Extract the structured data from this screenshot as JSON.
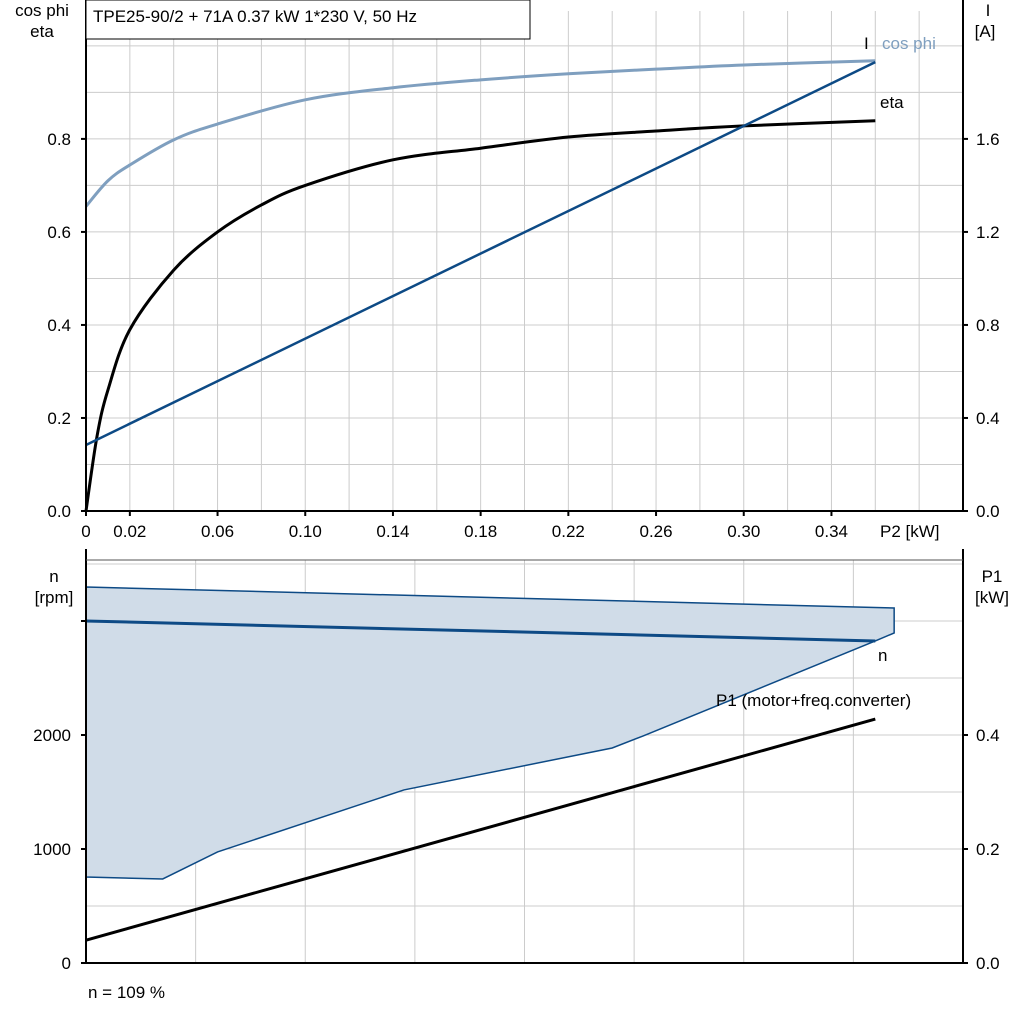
{
  "title": "TPE25-90/2 + 71A   0.37 kW   1*230 V, 50 Hz",
  "footer": "n = 109 %",
  "colors": {
    "cos_phi": "#7f9fbf",
    "eta": "#000000",
    "current": "#0d4a85",
    "n": "#0d4a85",
    "p1": "#000000",
    "area_fill": "#d0dce8",
    "grid": "#cccccc"
  },
  "chart_data": [
    {
      "type": "line",
      "xlabel": "P2 [kW]",
      "xlim": [
        0,
        0.4
      ],
      "xticks": [
        "0",
        "0.02",
        "0.06",
        "0.10",
        "0.14",
        "0.18",
        "0.22",
        "0.26",
        "0.30",
        "0.34"
      ],
      "xtick_values": [
        0,
        0.02,
        0.06,
        0.1,
        0.14,
        0.18,
        0.22,
        0.26,
        0.3,
        0.34
      ],
      "ylabel_left": [
        "cos phi",
        "eta"
      ],
      "ylim_left": [
        0,
        1.075
      ],
      "yticks_left": [
        "0.0",
        "0.2",
        "0.4",
        "0.6",
        "0.8"
      ],
      "ylabel_right": [
        "I",
        "[A]"
      ],
      "ylim_right": [
        0,
        2.15
      ],
      "yticks_right": [
        "0.0",
        "0.4",
        "0.8",
        "1.2",
        "1.6"
      ],
      "grid": true,
      "series": [
        {
          "name": "cos phi",
          "axis": "left",
          "x": [
            0,
            0.01,
            0.02,
            0.04,
            0.06,
            0.1,
            0.14,
            0.18,
            0.22,
            0.26,
            0.3,
            0.36
          ],
          "y": [
            0.655,
            0.71,
            0.744,
            0.798,
            0.832,
            0.884,
            0.91,
            0.927,
            0.94,
            0.95,
            0.959,
            0.968
          ]
        },
        {
          "name": "eta",
          "axis": "left",
          "x": [
            0,
            0.005,
            0.01,
            0.02,
            0.04,
            0.06,
            0.08,
            0.1,
            0.14,
            0.18,
            0.22,
            0.26,
            0.3,
            0.36
          ],
          "y": [
            0,
            0.16,
            0.26,
            0.39,
            0.518,
            0.6,
            0.658,
            0.7,
            0.755,
            0.78,
            0.804,
            0.817,
            0.828,
            0.839
          ]
        },
        {
          "name": "I",
          "axis": "right",
          "x": [
            0,
            0.36
          ],
          "y": [
            0.284,
            1.93
          ]
        }
      ]
    },
    {
      "type": "line",
      "xlim": [
        0,
        0.4
      ],
      "ylabel_left": [
        "n",
        "[rpm]"
      ],
      "ylim_left": [
        0,
        3535
      ],
      "yticks_left": [
        "0",
        "1000",
        "2000"
      ],
      "ylabel_right": [
        "P1",
        "[kW]"
      ],
      "ylim_right": [
        0,
        0.707
      ],
      "yticks_right": [
        "0.0",
        "0.2",
        "0.4"
      ],
      "grid": true,
      "area": {
        "x": [
          0,
          0.3686,
          0.3686,
          0.36,
          0.254,
          0.24,
          0.145,
          0.06,
          0.035,
          0
        ],
        "y": [
          3298,
          3114,
          2895,
          2825,
          1991,
          1886,
          1518,
          974,
          737,
          754
        ]
      },
      "series": [
        {
          "name": "n",
          "axis": "left",
          "x": [
            0,
            0.36
          ],
          "y": [
            3000,
            2825
          ]
        },
        {
          "name": "P1 (motor+freq.converter)",
          "axis": "right",
          "x": [
            0,
            0.36
          ],
          "y": [
            0.04,
            0.428
          ]
        }
      ]
    }
  ]
}
